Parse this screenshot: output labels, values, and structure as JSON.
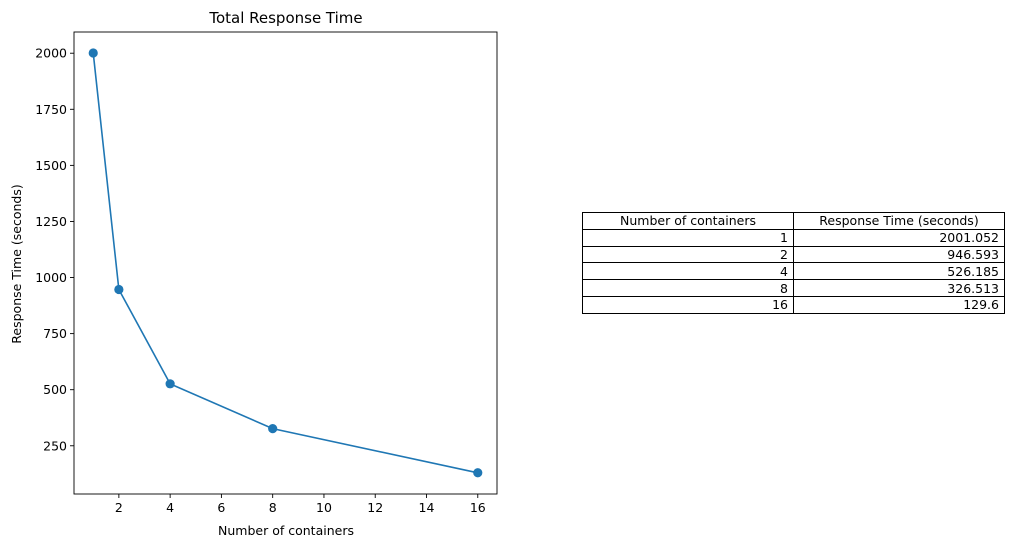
{
  "chart_data": {
    "type": "line",
    "title": "Total Response Time",
    "xlabel": "Number of containers",
    "ylabel": "Response Time (seconds)",
    "x": [
      1,
      2,
      4,
      8,
      16
    ],
    "series": [
      {
        "values": [
          2001.052,
          946.593,
          526.185,
          326.513,
          129.6
        ],
        "color": "#1f77b4",
        "marker": "circle"
      }
    ],
    "xlim": [
      0.25,
      16.75
    ],
    "ylim": [
      35.03,
      2094.58
    ],
    "xticks": [
      2,
      4,
      6,
      8,
      10,
      12,
      14,
      16
    ],
    "yticks": [
      250,
      500,
      750,
      1000,
      1250,
      1500,
      1750,
      2000
    ],
    "grid": false
  },
  "table": {
    "headers": [
      "Number of containers",
      "Response Time (seconds)"
    ],
    "rows": [
      [
        "1",
        "2001.052"
      ],
      [
        "2",
        "946.593"
      ],
      [
        "4",
        "526.185"
      ],
      [
        "8",
        "326.513"
      ],
      [
        "16",
        "129.6"
      ]
    ]
  }
}
